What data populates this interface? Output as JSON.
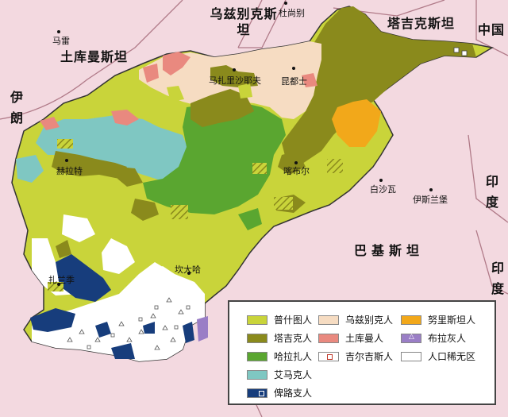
{
  "countries": {
    "turkmenistan": "土库曼斯坦",
    "uzbekistan": "乌兹别克斯坦",
    "tajikistan": "塔吉克斯坦",
    "china": "中国",
    "iran": "伊朗",
    "pakistan": "巴基斯坦",
    "india_upper": "印度",
    "india_lower": "印度"
  },
  "cities": {
    "mary": "马雷",
    "dushanbe": "杜尚别",
    "mazar": "马扎里沙耶夫",
    "kunduz": "昆都士",
    "herat": "赫拉特",
    "kabul": "喀布尔",
    "peshawar": "白沙瓦",
    "islamabad": "伊斯兰堡",
    "kandahar": "坎大哈",
    "zaranj": "扎兰季"
  },
  "legend": {
    "pashtun": "普什图人",
    "uzbek": "乌兹别克人",
    "nuristani": "努里斯坦人",
    "tajik": "塔吉克人",
    "turkmen": "土库曼人",
    "baloch": "布拉灰人",
    "hazara": "哈拉扎人",
    "kyrgyz": "吉尔吉斯人",
    "sparse": "人口稀无区",
    "aimak": "艾马克人",
    "baluchi": "俾路支人"
  },
  "colors": {
    "background": "#f3d9e0",
    "pashtun": "#c9d43a",
    "uzbek": "#f6dcc2",
    "nuristani": "#f2a81a",
    "tajik": "#8a8a1c",
    "turkmen": "#e9897f",
    "brahui": "#9a7ec6",
    "hazara": "#5aa630",
    "kyrgyz": "#ffffff",
    "sparse": "#ffffff",
    "aimak": "#7fc7c2",
    "baluchi": "#173d7c"
  }
}
